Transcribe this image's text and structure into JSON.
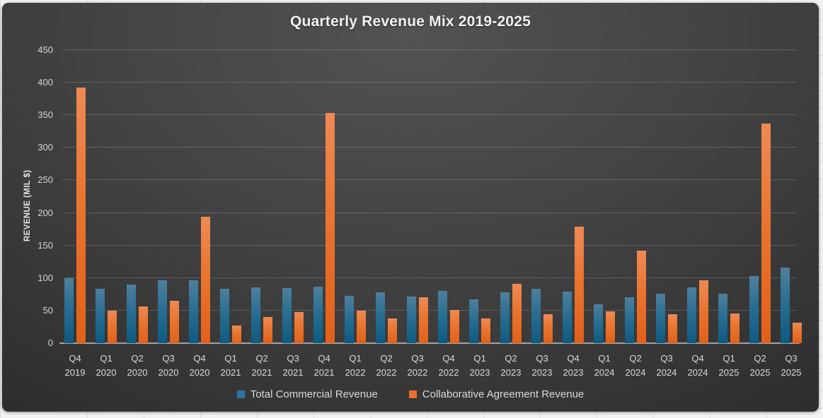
{
  "title": "Quarterly Revenue Mix 2019-2025",
  "y_axis": {
    "label": "REVENUE (MIL $)"
  },
  "legend": {
    "items": [
      {
        "label": "Total Commercial Revenue",
        "color": "#2e74a2"
      },
      {
        "label": "Collaborative Agreement Revenue",
        "color": "#e8702c"
      }
    ]
  },
  "chart_data": {
    "type": "bar",
    "title": "Quarterly Revenue Mix 2019-2025",
    "xlabel": "",
    "ylabel": "REVENUE (MIL $)",
    "ylim": [
      0,
      450
    ],
    "y_ticks": [
      0,
      50,
      100,
      150,
      200,
      250,
      300,
      350,
      400,
      450
    ],
    "grid": true,
    "legend_position": "bottom",
    "categories": [
      "Q4 2019",
      "Q1 2020",
      "Q2 2020",
      "Q3 2020",
      "Q4 2020",
      "Q1 2021",
      "Q2 2021",
      "Q3 2021",
      "Q4 2021",
      "Q1 2022",
      "Q2 2022",
      "Q3 2022",
      "Q4 2022",
      "Q1 2023",
      "Q2 2023",
      "Q3 2023",
      "Q4 2023",
      "Q1 2024",
      "Q2 2024",
      "Q3 2024",
      "Q4 2024",
      "Q1 2025",
      "Q2 2025",
      "Q3 2025"
    ],
    "series": [
      {
        "name": "Total Commercial Revenue",
        "color": "#2e74a2",
        "values": [
          100,
          83,
          90,
          96,
          97,
          84,
          86,
          85,
          87,
          73,
          78,
          72,
          80,
          67,
          78,
          84,
          79,
          60,
          71,
          76,
          86,
          76,
          103,
          116
        ]
      },
      {
        "name": "Collaborative Agreement Revenue",
        "color": "#e8702c",
        "values": [
          393,
          50,
          56,
          65,
          194,
          27,
          40,
          48,
          353,
          50,
          38,
          70,
          51,
          38,
          91,
          44,
          179,
          49,
          142,
          44,
          97,
          46,
          337,
          31
        ]
      }
    ]
  }
}
